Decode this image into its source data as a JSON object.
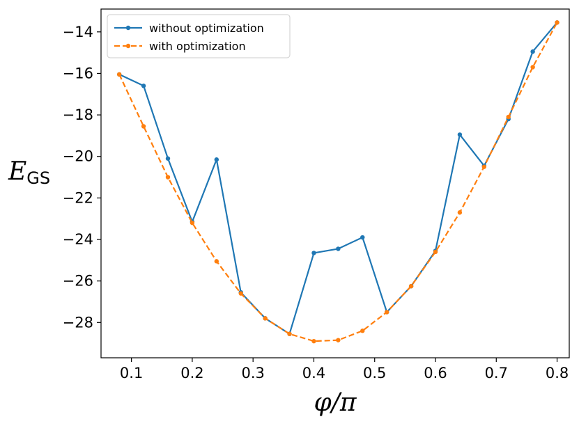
{
  "chart_data": {
    "type": "line",
    "title": "",
    "xlabel": "φ/π",
    "ylabel_main": "E",
    "ylabel_sub": "GS",
    "xlim": [
      0.05,
      0.82
    ],
    "ylim": [
      -29.7,
      -12.9
    ],
    "xticks": [
      0.1,
      0.2,
      0.3,
      0.4,
      0.5,
      0.6,
      0.7,
      0.8
    ],
    "xtick_labels": [
      "0.1",
      "0.2",
      "0.3",
      "0.4",
      "0.5",
      "0.6",
      "0.7",
      "0.8"
    ],
    "yticks": [
      -28,
      -26,
      -24,
      -22,
      -20,
      -18,
      -16,
      -14
    ],
    "ytick_labels": [
      "−28",
      "−26",
      "−24",
      "−22",
      "−20",
      "−18",
      "−16",
      "−14"
    ],
    "grid": false,
    "legend_position": "top-left",
    "x": [
      0.08,
      0.12,
      0.16,
      0.2,
      0.24,
      0.28,
      0.32,
      0.36,
      0.4,
      0.44,
      0.48,
      0.52,
      0.56,
      0.6,
      0.64,
      0.68,
      0.72,
      0.76,
      0.8
    ],
    "series": [
      {
        "name": "without optimization",
        "color": "#1f77b4",
        "style": "solid",
        "values": [
          -16.05,
          -16.6,
          -20.1,
          -23.15,
          -20.15,
          -26.55,
          -27.8,
          -28.55,
          -24.65,
          -24.45,
          -23.9,
          -27.5,
          -26.25,
          -24.55,
          -18.95,
          -20.45,
          -18.2,
          -14.95,
          -13.55
        ]
      },
      {
        "name": "with optimization",
        "color": "#ff7f0e",
        "style": "dashed",
        "values": [
          -16.05,
          -18.55,
          -21.0,
          -23.2,
          -25.05,
          -26.6,
          -27.8,
          -28.55,
          -28.9,
          -28.85,
          -28.4,
          -27.5,
          -26.25,
          -24.6,
          -22.7,
          -20.5,
          -18.1,
          -15.7,
          -13.55
        ]
      }
    ]
  }
}
